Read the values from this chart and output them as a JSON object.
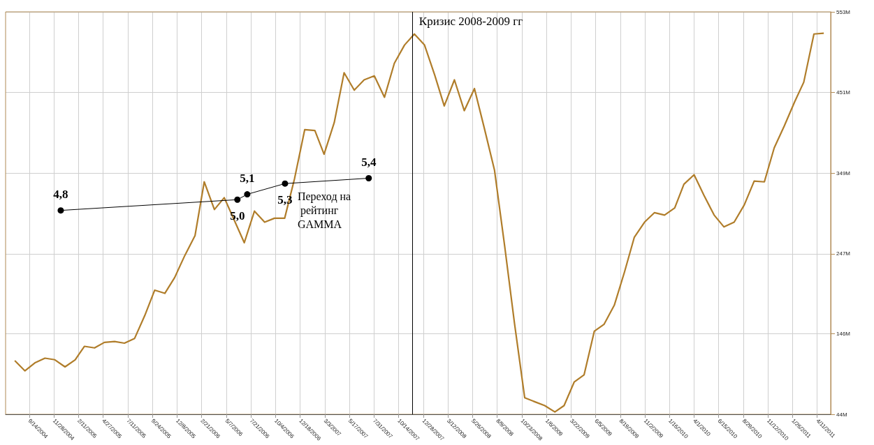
{
  "chart_data": {
    "type": "line",
    "xlim": [
      "2004-07-04",
      "2011-05-22"
    ],
    "ylim": [
      44,
      553
    ],
    "xticks": [
      {
        "value": "2004-09-14",
        "label": "9/14/2004"
      },
      {
        "value": "2004-11-28",
        "label": "11/28/2004"
      },
      {
        "value": "2005-02-11",
        "label": "2/11/2005"
      },
      {
        "value": "2005-04-27",
        "label": "4/27/2005"
      },
      {
        "value": "2005-07-11",
        "label": "7/11/2005"
      },
      {
        "value": "2005-09-24",
        "label": "9/24/2005"
      },
      {
        "value": "2005-12-08",
        "label": "12/8/2005"
      },
      {
        "value": "2006-02-21",
        "label": "2/21/2006"
      },
      {
        "value": "2006-05-07",
        "label": "5/7/2006"
      },
      {
        "value": "2006-07-21",
        "label": "7/21/2006"
      },
      {
        "value": "2006-10-04",
        "label": "10/4/2006"
      },
      {
        "value": "2006-12-18",
        "label": "12/18/2006"
      },
      {
        "value": "2007-03-03",
        "label": "3/3/2007"
      },
      {
        "value": "2007-05-17",
        "label": "5/17/2007"
      },
      {
        "value": "2007-07-31",
        "label": "7/31/2007"
      },
      {
        "value": "2007-10-14",
        "label": "10/14/2007"
      },
      {
        "value": "2007-12-28",
        "label": "12/28/2007"
      },
      {
        "value": "2008-03-12",
        "label": "3/12/2008"
      },
      {
        "value": "2008-05-26",
        "label": "5/26/2008"
      },
      {
        "value": "2008-08-09",
        "label": "8/9/2008"
      },
      {
        "value": "2008-10-23",
        "label": "10/23/2008"
      },
      {
        "value": "2009-01-06",
        "label": "1/6/2009"
      },
      {
        "value": "2009-03-22",
        "label": "3/22/2009"
      },
      {
        "value": "2009-06-05",
        "label": "6/5/2009"
      },
      {
        "value": "2009-08-19",
        "label": "8/19/2009"
      },
      {
        "value": "2009-11-02",
        "label": "11/2/2009"
      },
      {
        "value": "2010-01-16",
        "label": "1/16/2010"
      },
      {
        "value": "2010-04-01",
        "label": "4/1/2010"
      },
      {
        "value": "2010-06-15",
        "label": "6/15/2010"
      },
      {
        "value": "2010-08-29",
        "label": "8/29/2010"
      },
      {
        "value": "2010-11-12",
        "label": "11/12/2010"
      },
      {
        "value": "2011-01-26",
        "label": "1/26/2011"
      },
      {
        "value": "2011-04-11",
        "label": "4/11/2011"
      }
    ],
    "yticks": [
      {
        "value": 44,
        "label": "44M"
      },
      {
        "value": 146,
        "label": "146M"
      },
      {
        "value": 247,
        "label": "247M"
      },
      {
        "value": 349,
        "label": "349M"
      },
      {
        "value": 451,
        "label": "451M"
      },
      {
        "value": 553,
        "label": "553M"
      }
    ],
    "y2lim": [
      1,
      8.5
    ],
    "grid": true,
    "marker": "none",
    "line_style": "solid",
    "series": [
      {
        "color": "#b07d2a",
        "x": [
          "2004-08",
          "2004-09",
          "2004-10",
          "2004-11",
          "2004-12",
          "2005-01",
          "2005-02",
          "2005-03",
          "2005-04",
          "2005-05",
          "2005-06",
          "2005-07",
          "2005-08",
          "2005-09",
          "2005-10",
          "2005-11",
          "2005-12",
          "2006-01",
          "2006-02",
          "2006-03",
          "2006-04",
          "2006-05",
          "2006-06",
          "2006-07",
          "2006-08",
          "2006-09",
          "2006-10",
          "2006-11",
          "2006-12",
          "2007-01",
          "2007-02",
          "2007-03",
          "2007-04",
          "2007-05",
          "2007-06",
          "2007-07",
          "2007-08",
          "2007-09",
          "2007-10",
          "2007-11",
          "2007-12",
          "2008-01",
          "2008-02",
          "2008-03",
          "2008-04",
          "2008-05",
          "2008-06",
          "2008-07",
          "2008-08",
          "2008-09",
          "2008-10",
          "2008-11",
          "2008-12",
          "2009-01",
          "2009-02",
          "2009-03",
          "2009-04",
          "2009-05",
          "2009-06",
          "2009-07",
          "2009-08",
          "2009-09",
          "2009-10",
          "2009-11",
          "2009-12",
          "2010-01",
          "2010-02",
          "2010-03",
          "2010-04",
          "2010-05",
          "2010-06",
          "2010-07",
          "2010-08",
          "2010-09",
          "2010-10",
          "2010-11",
          "2010-12",
          "2011-01",
          "2011-02",
          "2011-03",
          "2011-04",
          "2011-05"
        ],
        "values": [
          112,
          99,
          109,
          115,
          113,
          104,
          113,
          130,
          128,
          135,
          136,
          134,
          140,
          169,
          201,
          197,
          217,
          245,
          270,
          338,
          303,
          318,
          289,
          261,
          301,
          287,
          292,
          292,
          342,
          404,
          403,
          373,
          413,
          476,
          454,
          467,
          472,
          445,
          488,
          511,
          525,
          511,
          473,
          434,
          467,
          428,
          456,
          406,
          353,
          257,
          159,
          65,
          60,
          55,
          47,
          55,
          85,
          94,
          149,
          158,
          182,
          224,
          268,
          287,
          299,
          296,
          305,
          335,
          347,
          321,
          296,
          281,
          287,
          309,
          339,
          338,
          381,
          409,
          439,
          464,
          525,
          526
        ]
      },
      {
        "color": "#000000",
        "axis": "y2",
        "marker": "circle",
        "x": [
          "2004-12-19",
          "2006-06-10",
          "2006-07-10",
          "2006-11-02",
          "2007-07-15"
        ],
        "values": [
          4.8,
          5.0,
          5.1,
          5.3,
          5.4
        ],
        "value_labels": [
          "4,8",
          "5,0",
          "5,1",
          "5,3",
          "5,4"
        ]
      }
    ],
    "ref_lines": [
      {
        "axis": "x",
        "value": "2007-11-24",
        "label": "Кризис 2008-2009 гг",
        "color": "#000000"
      }
    ],
    "annotations": [
      "Переход на рейтинг GAMMA"
    ]
  }
}
